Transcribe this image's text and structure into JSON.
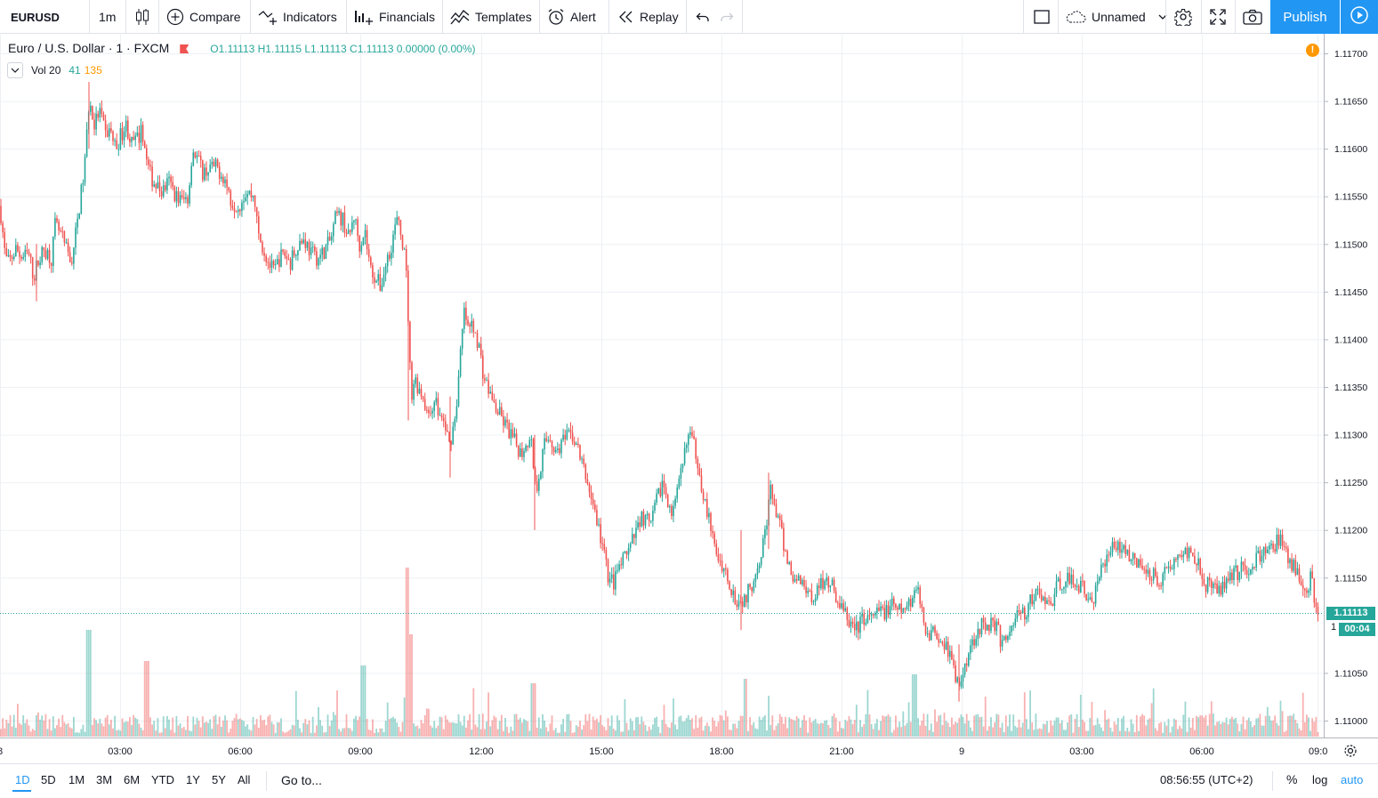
{
  "toolbar": {
    "symbol": "EURUSD",
    "interval": "1m",
    "compare": "Compare",
    "indicators": "Indicators",
    "financials": "Financials",
    "templates": "Templates",
    "alert": "Alert",
    "replay": "Replay",
    "layout_name": "Unnamed",
    "publish": "Publish"
  },
  "legend": {
    "title": "Euro / U.S. Dollar · 1 · FXCM",
    "ohlc": "O1.11113  H1.11115  L1.11113  C1.11113  0.00000 (0.00%)",
    "vol_label": "Vol 20",
    "vol_value_a": "41",
    "vol_value_b": "135"
  },
  "price_axis": {
    "ticks": [
      "1.11700",
      "1.11650",
      "1.11600",
      "1.11550",
      "1.11500",
      "1.11450",
      "1.11400",
      "1.11350",
      "1.11300",
      "1.11250",
      "1.11200",
      "1.11150",
      "1.11050",
      "1.11000"
    ],
    "last_price": "1.11113",
    "countdown": "00:04",
    "partial_tick": "1"
  },
  "time_axis": {
    "ticks": [
      "8",
      "03:00",
      "06:00",
      "09:00",
      "12:00",
      "15:00",
      "18:00",
      "21:00",
      "9",
      "03:00",
      "06:00",
      "09:0"
    ]
  },
  "bottombar": {
    "ranges": [
      "1D",
      "5D",
      "1M",
      "3M",
      "6M",
      "YTD",
      "1Y",
      "5Y",
      "All"
    ],
    "active_range": "1D",
    "goto": "Go to...",
    "clock": "08:56:55 (UTC+2)",
    "percent": "%",
    "log": "log",
    "auto": "auto"
  },
  "colors": {
    "up": "#26a69a",
    "down": "#ef5350",
    "accent": "#2196f3",
    "warning": "#ff9800"
  },
  "chart_data": {
    "type": "candlestick",
    "ylim": [
      1.10985,
      1.11712
    ],
    "price_path": [
      [
        0,
        1.1154
      ],
      [
        6,
        1.11485
      ],
      [
        10,
        1.1148
      ],
      [
        18,
        1.11495
      ],
      [
        25,
        1.11485
      ],
      [
        32,
        1.1149
      ],
      [
        38,
        1.11465
      ],
      [
        42,
        1.1148
      ],
      [
        50,
        1.11495
      ],
      [
        58,
        1.11485
      ],
      [
        62,
        1.1152
      ],
      [
        68,
        1.1151
      ],
      [
        74,
        1.11495
      ],
      [
        80,
        1.1148
      ],
      [
        85,
        1.1151
      ],
      [
        90,
        1.11545
      ],
      [
        95,
        1.1158
      ],
      [
        98,
        1.1162
      ],
      [
        100,
        1.1165
      ],
      [
        106,
        1.11625
      ],
      [
        112,
        1.1164
      ],
      [
        118,
        1.11615
      ],
      [
        124,
        1.1162
      ],
      [
        130,
        1.116
      ],
      [
        136,
        1.11615
      ],
      [
        142,
        1.11625
      ],
      [
        148,
        1.11605
      ],
      [
        155,
        1.1161
      ],
      [
        160,
        1.1162
      ],
      [
        165,
        1.11585
      ],
      [
        170,
        1.1157
      ],
      [
        176,
        1.1156
      ],
      [
        182,
        1.11555
      ],
      [
        190,
        1.11565
      ],
      [
        198,
        1.1155
      ],
      [
        205,
        1.11545
      ],
      [
        212,
        1.1155
      ],
      [
        216,
        1.116
      ],
      [
        222,
        1.1159
      ],
      [
        228,
        1.11575
      ],
      [
        236,
        1.1158
      ],
      [
        244,
        1.1158
      ],
      [
        252,
        1.1157
      ],
      [
        260,
        1.11545
      ],
      [
        268,
        1.1154
      ],
      [
        276,
        1.11555
      ],
      [
        286,
        1.1155
      ],
      [
        290,
        1.1151
      ],
      [
        296,
        1.11495
      ],
      [
        302,
        1.1148
      ],
      [
        308,
        1.1147
      ],
      [
        314,
        1.11485
      ],
      [
        320,
        1.1149
      ],
      [
        326,
        1.1148
      ],
      [
        334,
        1.115
      ],
      [
        342,
        1.11505
      ],
      [
        350,
        1.1149
      ],
      [
        358,
        1.11485
      ],
      [
        366,
        1.11495
      ],
      [
        372,
        1.11505
      ],
      [
        378,
        1.1153
      ],
      [
        386,
        1.11525
      ],
      [
        392,
        1.11505
      ],
      [
        398,
        1.1153
      ],
      [
        404,
        1.115
      ],
      [
        410,
        1.11515
      ],
      [
        416,
        1.11475
      ],
      [
        422,
        1.11465
      ],
      [
        428,
        1.11455
      ],
      [
        434,
        1.1148
      ],
      [
        440,
        1.115
      ],
      [
        446,
        1.11525
      ],
      [
        452,
        1.11505
      ],
      [
        456,
        1.1148
      ],
      [
        459,
        1.1142
      ],
      [
        462,
        1.1134
      ],
      [
        466,
        1.1136
      ],
      [
        470,
        1.1135
      ],
      [
        476,
        1.1134
      ],
      [
        482,
        1.11315
      ],
      [
        488,
        1.1134
      ],
      [
        494,
        1.1132
      ],
      [
        500,
        1.1131
      ],
      [
        505,
        1.1129
      ],
      [
        510,
        1.1131
      ],
      [
        514,
        1.1134
      ],
      [
        518,
        1.1139
      ],
      [
        522,
        1.1143
      ],
      [
        526,
        1.1141
      ],
      [
        532,
        1.11415
      ],
      [
        538,
        1.11395
      ],
      [
        544,
        1.1136
      ],
      [
        550,
        1.11345
      ],
      [
        556,
        1.1133
      ],
      [
        562,
        1.1132
      ],
      [
        568,
        1.1131
      ],
      [
        574,
        1.113
      ],
      [
        580,
        1.1129
      ],
      [
        586,
        1.1128
      ],
      [
        592,
        1.11295
      ],
      [
        598,
        1.1129
      ],
      [
        602,
        1.1124
      ],
      [
        606,
        1.1126
      ],
      [
        612,
        1.1129
      ],
      [
        618,
        1.113
      ],
      [
        624,
        1.1128
      ],
      [
        630,
        1.1129
      ],
      [
        636,
        1.11295
      ],
      [
        642,
        1.113
      ],
      [
        648,
        1.1129
      ],
      [
        654,
        1.1127
      ],
      [
        660,
        1.1125
      ],
      [
        666,
        1.1123
      ],
      [
        672,
        1.11205
      ],
      [
        678,
        1.1118
      ],
      [
        684,
        1.1115
      ],
      [
        690,
        1.11145
      ],
      [
        696,
        1.1116
      ],
      [
        702,
        1.1117
      ],
      [
        708,
        1.1118
      ],
      [
        714,
        1.11195
      ],
      [
        720,
        1.11215
      ],
      [
        726,
        1.1121
      ],
      [
        732,
        1.11205
      ],
      [
        738,
        1.1123
      ],
      [
        744,
        1.1125
      ],
      [
        750,
        1.11235
      ],
      [
        756,
        1.11215
      ],
      [
        762,
        1.1124
      ],
      [
        768,
        1.1127
      ],
      [
        772,
        1.113
      ],
      [
        778,
        1.11295
      ],
      [
        784,
        1.11275
      ],
      [
        790,
        1.1124
      ],
      [
        796,
        1.11215
      ],
      [
        802,
        1.11185
      ],
      [
        808,
        1.1117
      ],
      [
        814,
        1.1116
      ],
      [
        820,
        1.11145
      ],
      [
        826,
        1.1113
      ],
      [
        832,
        1.11125
      ],
      [
        838,
        1.1113
      ],
      [
        844,
        1.1114
      ],
      [
        850,
        1.1116
      ],
      [
        856,
        1.1118
      ],
      [
        862,
        1.1121
      ],
      [
        866,
        1.1124
      ],
      [
        870,
        1.1123
      ],
      [
        876,
        1.11205
      ],
      [
        882,
        1.1118
      ],
      [
        888,
        1.1116
      ],
      [
        894,
        1.11145
      ],
      [
        900,
        1.1115
      ],
      [
        906,
        1.1114
      ],
      [
        912,
        1.1113
      ],
      [
        918,
        1.11135
      ],
      [
        924,
        1.11145
      ],
      [
        930,
        1.1115
      ],
      [
        936,
        1.1114
      ],
      [
        942,
        1.11125
      ],
      [
        948,
        1.11115
      ],
      [
        954,
        1.11105
      ],
      [
        960,
        1.11095
      ],
      [
        966,
        1.111
      ],
      [
        972,
        1.1111
      ],
      [
        978,
        1.11105
      ],
      [
        984,
        1.1111
      ],
      [
        990,
        1.11115
      ],
      [
        996,
        1.11115
      ],
      [
        1002,
        1.1112
      ],
      [
        1008,
        1.11115
      ],
      [
        1014,
        1.11115
      ],
      [
        1020,
        1.1112
      ],
      [
        1026,
        1.1113
      ],
      [
        1030,
        1.11145
      ],
      [
        1034,
        1.1112
      ],
      [
        1040,
        1.111
      ],
      [
        1046,
        1.1109
      ],
      [
        1052,
        1.11095
      ],
      [
        1058,
        1.11085
      ],
      [
        1064,
        1.1108
      ],
      [
        1070,
        1.1106
      ],
      [
        1076,
        1.1104
      ],
      [
        1080,
        1.11035
      ],
      [
        1084,
        1.1106
      ],
      [
        1090,
        1.11075
      ],
      [
        1096,
        1.1109
      ],
      [
        1102,
        1.111
      ],
      [
        1108,
        1.11095
      ],
      [
        1114,
        1.11105
      ],
      [
        1120,
        1.111
      ],
      [
        1126,
        1.1108
      ],
      [
        1132,
        1.1109
      ],
      [
        1138,
        1.111
      ],
      [
        1144,
        1.11115
      ],
      [
        1150,
        1.1111
      ],
      [
        1156,
        1.1112
      ],
      [
        1162,
        1.1113
      ],
      [
        1168,
        1.11135
      ],
      [
        1174,
        1.11125
      ],
      [
        1180,
        1.1112
      ],
      [
        1186,
        1.11135
      ],
      [
        1192,
        1.11145
      ],
      [
        1198,
        1.1115
      ],
      [
        1204,
        1.11145
      ],
      [
        1210,
        1.11145
      ],
      [
        1216,
        1.1114
      ],
      [
        1222,
        1.1113
      ],
      [
        1228,
        1.11125
      ],
      [
        1234,
        1.1114
      ],
      [
        1240,
        1.11165
      ],
      [
        1246,
        1.1118
      ],
      [
        1252,
        1.11185
      ],
      [
        1258,
        1.1118
      ],
      [
        1264,
        1.11185
      ],
      [
        1270,
        1.11175
      ],
      [
        1276,
        1.11165
      ],
      [
        1282,
        1.1116
      ],
      [
        1288,
        1.1116
      ],
      [
        1294,
        1.11155
      ],
      [
        1300,
        1.1115
      ],
      [
        1306,
        1.1115
      ],
      [
        1312,
        1.1116
      ],
      [
        1318,
        1.11165
      ],
      [
        1324,
        1.1117
      ],
      [
        1330,
        1.11175
      ],
      [
        1336,
        1.1118
      ],
      [
        1342,
        1.11175
      ],
      [
        1348,
        1.11165
      ],
      [
        1354,
        1.11145
      ],
      [
        1360,
        1.1114
      ],
      [
        1366,
        1.11135
      ],
      [
        1372,
        1.1114
      ],
      [
        1378,
        1.1115
      ],
      [
        1384,
        1.11155
      ],
      [
        1390,
        1.11155
      ],
      [
        1396,
        1.1116
      ],
      [
        1402,
        1.1116
      ],
      [
        1408,
        1.11165
      ],
      [
        1414,
        1.1117
      ],
      [
        1420,
        1.11175
      ],
      [
        1426,
        1.1118
      ],
      [
        1432,
        1.11185
      ],
      [
        1438,
        1.1119
      ],
      [
        1444,
        1.11175
      ],
      [
        1450,
        1.11165
      ],
      [
        1456,
        1.1116
      ],
      [
        1462,
        1.11145
      ],
      [
        1468,
        1.1114
      ],
      [
        1474,
        1.1115
      ],
      [
        1478,
        1.11125
      ],
      [
        1482,
        1.11113
      ]
    ],
    "spikes": [
      {
        "x": 100,
        "high": 1.1167,
        "low": 1.116
      },
      {
        "x": 459,
        "high": 1.1147,
        "low": 1.11315
      },
      {
        "x": 506,
        "high": 1.1134,
        "low": 1.11255
      },
      {
        "x": 601,
        "high": 1.113,
        "low": 1.112
      },
      {
        "x": 833,
        "high": 1.112,
        "low": 1.11095
      },
      {
        "x": 864,
        "high": 1.1126,
        "low": 1.1118
      },
      {
        "x": 1078,
        "high": 1.1108,
        "low": 1.1102
      },
      {
        "x": 41,
        "high": 1.115,
        "low": 1.1144
      }
    ]
  }
}
